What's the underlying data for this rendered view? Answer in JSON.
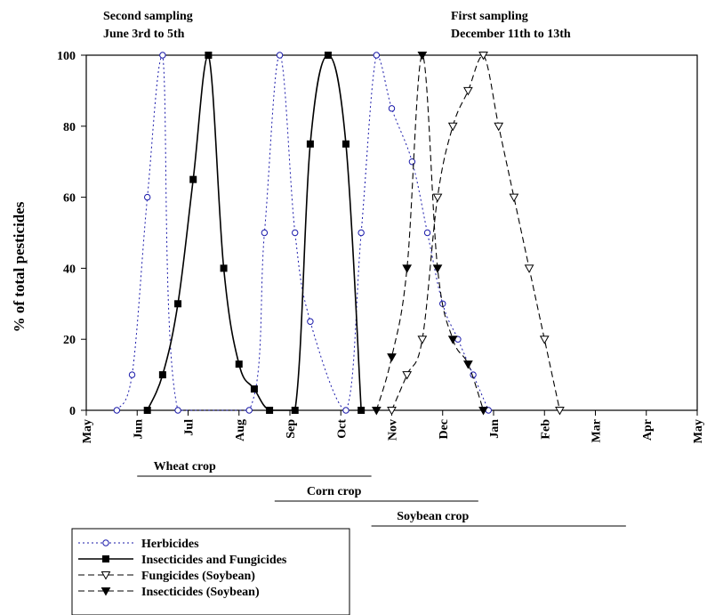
{
  "chart_data": {
    "type": "line",
    "ylabel": "% of total pesticides",
    "ylim": [
      0,
      100
    ],
    "yticks": [
      0,
      20,
      40,
      60,
      80,
      100
    ],
    "x_ticks": [
      "May",
      "Jun",
      "Jul",
      "Aug",
      "Sep",
      "Oct",
      "Nov",
      "Dec",
      "Jan",
      "Feb",
      "Mar",
      "Apr",
      "May"
    ],
    "annotations": {
      "second_sampling": [
        "Second sampling",
        "June 3rd to 5th"
      ],
      "first_sampling": [
        "First sampling",
        "December 11th to 13th"
      ]
    },
    "crops": [
      {
        "label": "Wheat crop",
        "from": 1.0,
        "to": 5.6
      },
      {
        "label": "Corn crop",
        "from": 3.7,
        "to": 7.7
      },
      {
        "label": "Soybean crop",
        "from": 5.6,
        "to": 10.6
      }
    ],
    "series": [
      {
        "name": "Herbicides",
        "color": "#1a1aaa",
        "dash": "2,3",
        "width": 1,
        "marker": "circle",
        "x": [
          0.6,
          0.9,
          1.2,
          1.5,
          1.8,
          3.2,
          3.5,
          3.8,
          4.1,
          4.4,
          5.1,
          5.4,
          5.7,
          6.0,
          6.4,
          6.7,
          7.0,
          7.3,
          7.6,
          7.9
        ],
        "y": [
          0,
          10,
          60,
          100,
          0,
          0,
          50,
          100,
          50,
          25,
          0,
          50,
          100,
          85,
          70,
          50,
          30,
          20,
          10,
          0
        ]
      },
      {
        "name": "Insecticides and Fungicides",
        "color": "#000000",
        "dash": "",
        "width": 1.6,
        "marker": "square",
        "x": [
          1.2,
          1.5,
          1.8,
          2.1,
          2.4,
          2.7,
          3.0,
          3.3,
          3.6,
          4.1,
          4.4,
          4.75,
          5.1,
          5.4
        ],
        "y": [
          0,
          10,
          30,
          65,
          100,
          40,
          13,
          6,
          0,
          0,
          75,
          100,
          75,
          0
        ]
      },
      {
        "name": "Fungicides (Soybean)",
        "color": "#000000",
        "dash": "7,4",
        "width": 1.1,
        "marker": "triangle-down",
        "x": [
          6.0,
          6.3,
          6.6,
          6.9,
          7.2,
          7.5,
          7.8,
          8.1,
          8.4,
          8.7,
          9.0,
          9.3
        ],
        "y": [
          0,
          10,
          20,
          60,
          80,
          90,
          100,
          80,
          60,
          40,
          20,
          0
        ]
      },
      {
        "name": "Insecticides (Soybean)",
        "color": "#000000",
        "dash": "7,4",
        "width": 1.1,
        "marker": "triangle-down-filled",
        "x": [
          5.7,
          6.0,
          6.3,
          6.6,
          6.9,
          7.2,
          7.5,
          7.8
        ],
        "y": [
          0,
          15,
          40,
          100,
          40,
          20,
          13,
          0
        ]
      }
    ],
    "legend_position": "bottom-left"
  }
}
